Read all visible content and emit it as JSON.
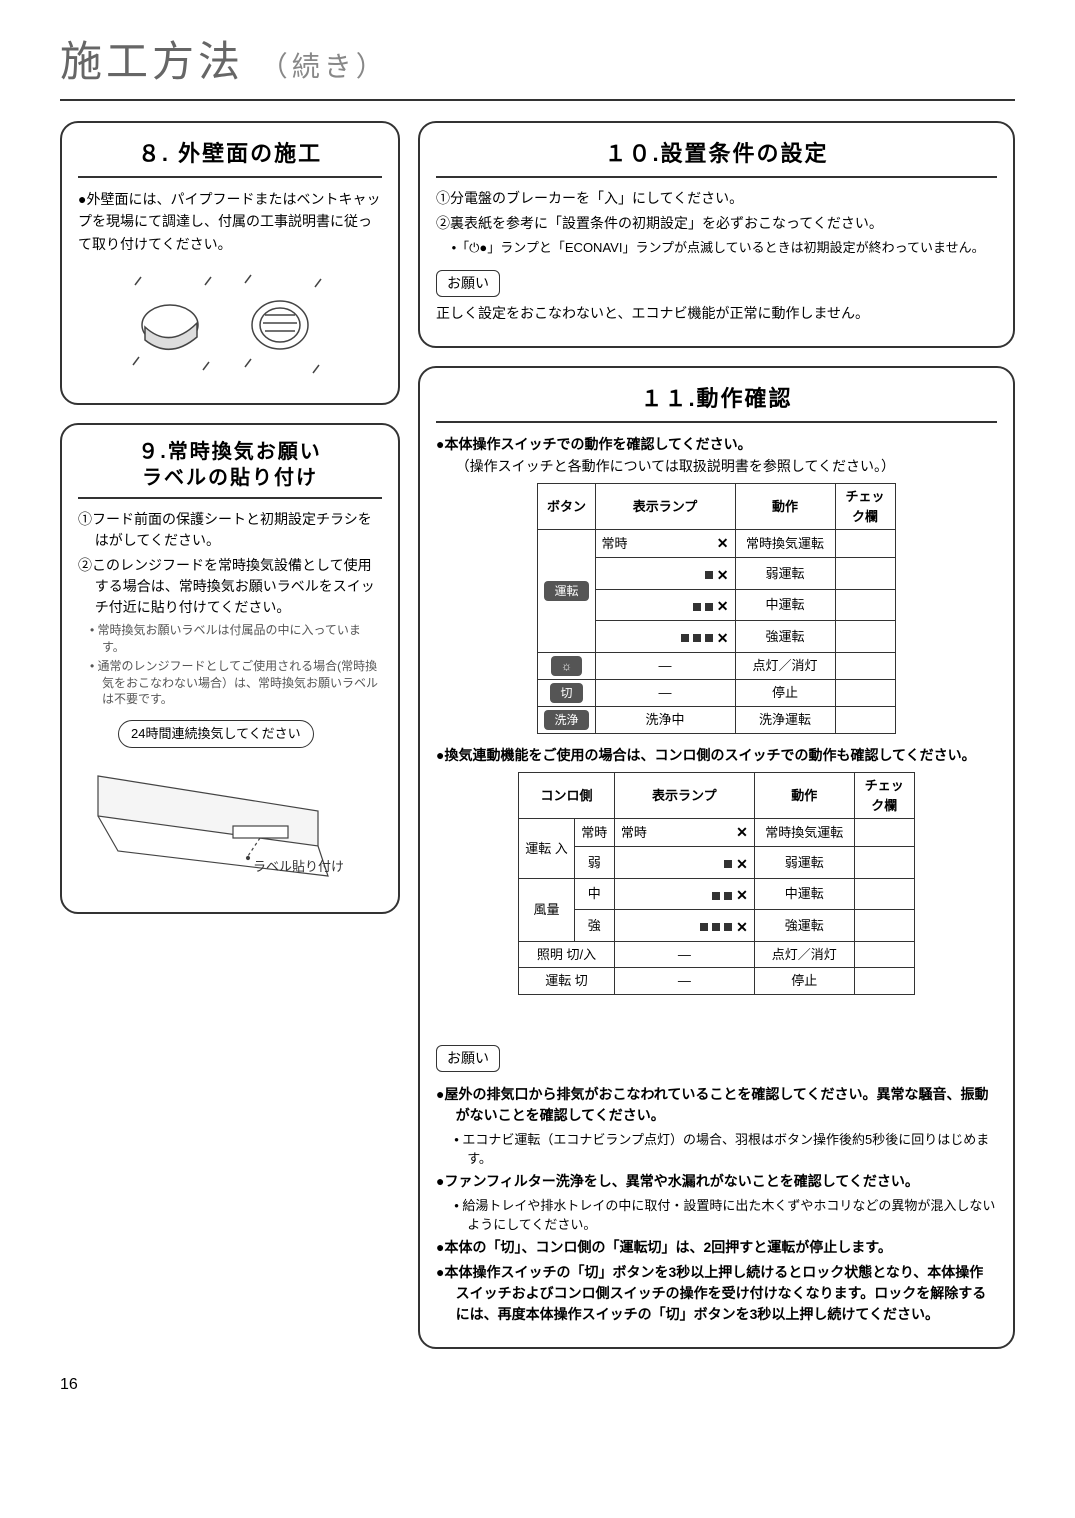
{
  "page": {
    "title_main": "施工方法",
    "title_sub": "（続き）",
    "number": "16"
  },
  "s8": {
    "title": "８. 外壁面の施工",
    "text": "●外壁面には、パイプフードまたはベントキャップを現場にて調達し、付属の工事説明書に従って取り付けてください。"
  },
  "s9": {
    "title_l1": "９.常時換気お願い",
    "title_l2": "ラベルの貼り付け",
    "item1": "①フード前面の保護シートと初期設定チラシをはがしてください。",
    "item2": "②このレンジフードを常時換気設備として使用する場合は、常時換気お願いラベルをスイッチ付近に貼り付けてください。",
    "note1": "• 常時換気お願いラベルは付属品の中に入っています。",
    "note2": "• 通常のレンジフードとしてご使用される場合(常時換気をおこなわない場合）は、常時換気お願いラベルは不要です。",
    "oval": "24時間連続換気してください",
    "caption": "ラベル貼り付け"
  },
  "s10": {
    "title": "１０.設置条件の設定",
    "item1": "①分電盤のブレーカーを「入」にしてください。",
    "item2": "②裏表紙を参考に「設置条件の初期設定」を必ずおこなってください。",
    "sub1": "•「⏻●」ランプと「ECONAVI」ランプが点滅しているときは初期設定が終わっていません。",
    "request_label": "お願い",
    "request_text": "正しく設定をおこなわないと、エコナビ機能が正常に動作しません。"
  },
  "s11": {
    "title": "１１.動作確認",
    "lead": "●本体操作スイッチでの動作を確認してください。",
    "lead_sub": "（操作スイッチと各動作については取扱説明書を参照してください。）",
    "tbl1": {
      "h": [
        "ボタン",
        "表示ランプ",
        "動作",
        "チェック欄"
      ],
      "btn_unten": "運転",
      "rows": [
        {
          "lamp_txt": "常時",
          "sq": 0,
          "act": "常時換気運転"
        },
        {
          "lamp_txt": "",
          "sq": 1,
          "act": "弱運転"
        },
        {
          "lamp_txt": "",
          "sq": 2,
          "act": "中運転"
        },
        {
          "lamp_txt": "",
          "sq": 3,
          "act": "強運転"
        }
      ],
      "btn_light": "☼",
      "light_lamp": "—",
      "light_act": "点灯／消灯",
      "btn_off": "切",
      "off_lamp": "—",
      "off_act": "停止",
      "btn_wash": "洗浄",
      "wash_lamp": "洗浄中",
      "wash_act": "洗浄運転"
    },
    "mid": "●換気連動機能をご使用の場合は、コンロ側のスイッチでの動作も確認してください。",
    "tbl2": {
      "h": [
        "コンロ側",
        "表示ランプ",
        "動作",
        "チェック欄"
      ],
      "unten_in": "運転 入",
      "fuuryou": "風量",
      "rows": [
        {
          "k": "常時",
          "lamp_txt": "常時",
          "sq": 0,
          "act": "常時換気運転"
        },
        {
          "k": "弱",
          "lamp_txt": "",
          "sq": 1,
          "act": "弱運転"
        },
        {
          "k": "中",
          "lamp_txt": "",
          "sq": 2,
          "act": "中運転"
        },
        {
          "k": "強",
          "lamp_txt": "",
          "sq": 3,
          "act": "強運転"
        }
      ],
      "light": "照明 切/入",
      "light_lamp": "—",
      "light_act": "点灯／消灯",
      "off": "運転 切",
      "off_lamp": "—",
      "off_act": "停止"
    },
    "req_label": "お願い",
    "req": [
      {
        "b": true,
        "t": "●屋外の排気口から排気がおこなわれていることを確認してください。異常な騒音、振動がないことを確認してください。"
      },
      {
        "b": false,
        "t": "• エコナビ運転（エコナビランプ点灯）の場合、羽根はボタン操作後約5秒後に回りはじめます。",
        "sub": true
      },
      {
        "b": true,
        "t": "●ファンフィルター洗浄をし、異常や水漏れがないことを確認してください。"
      },
      {
        "b": false,
        "t": "• 給湯トレイや排水トレイの中に取付・設置時に出た木くずやホコリなどの異物が混入しないようにしてください。",
        "sub": true
      },
      {
        "b": true,
        "t": "●本体の「切」、コンロ側の「運転切」は、2回押すと運転が停止します。"
      },
      {
        "b": true,
        "t": "●本体操作スイッチの「切」ボタンを3秒以上押し続けるとロック状態となり、本体操作スイッチおよびコンロ側スイッチの操作を受け付けなくなります。ロックを解除するには、再度本体操作スイッチの「切」ボタンを3秒以上押し続けてください。"
      }
    ]
  }
}
